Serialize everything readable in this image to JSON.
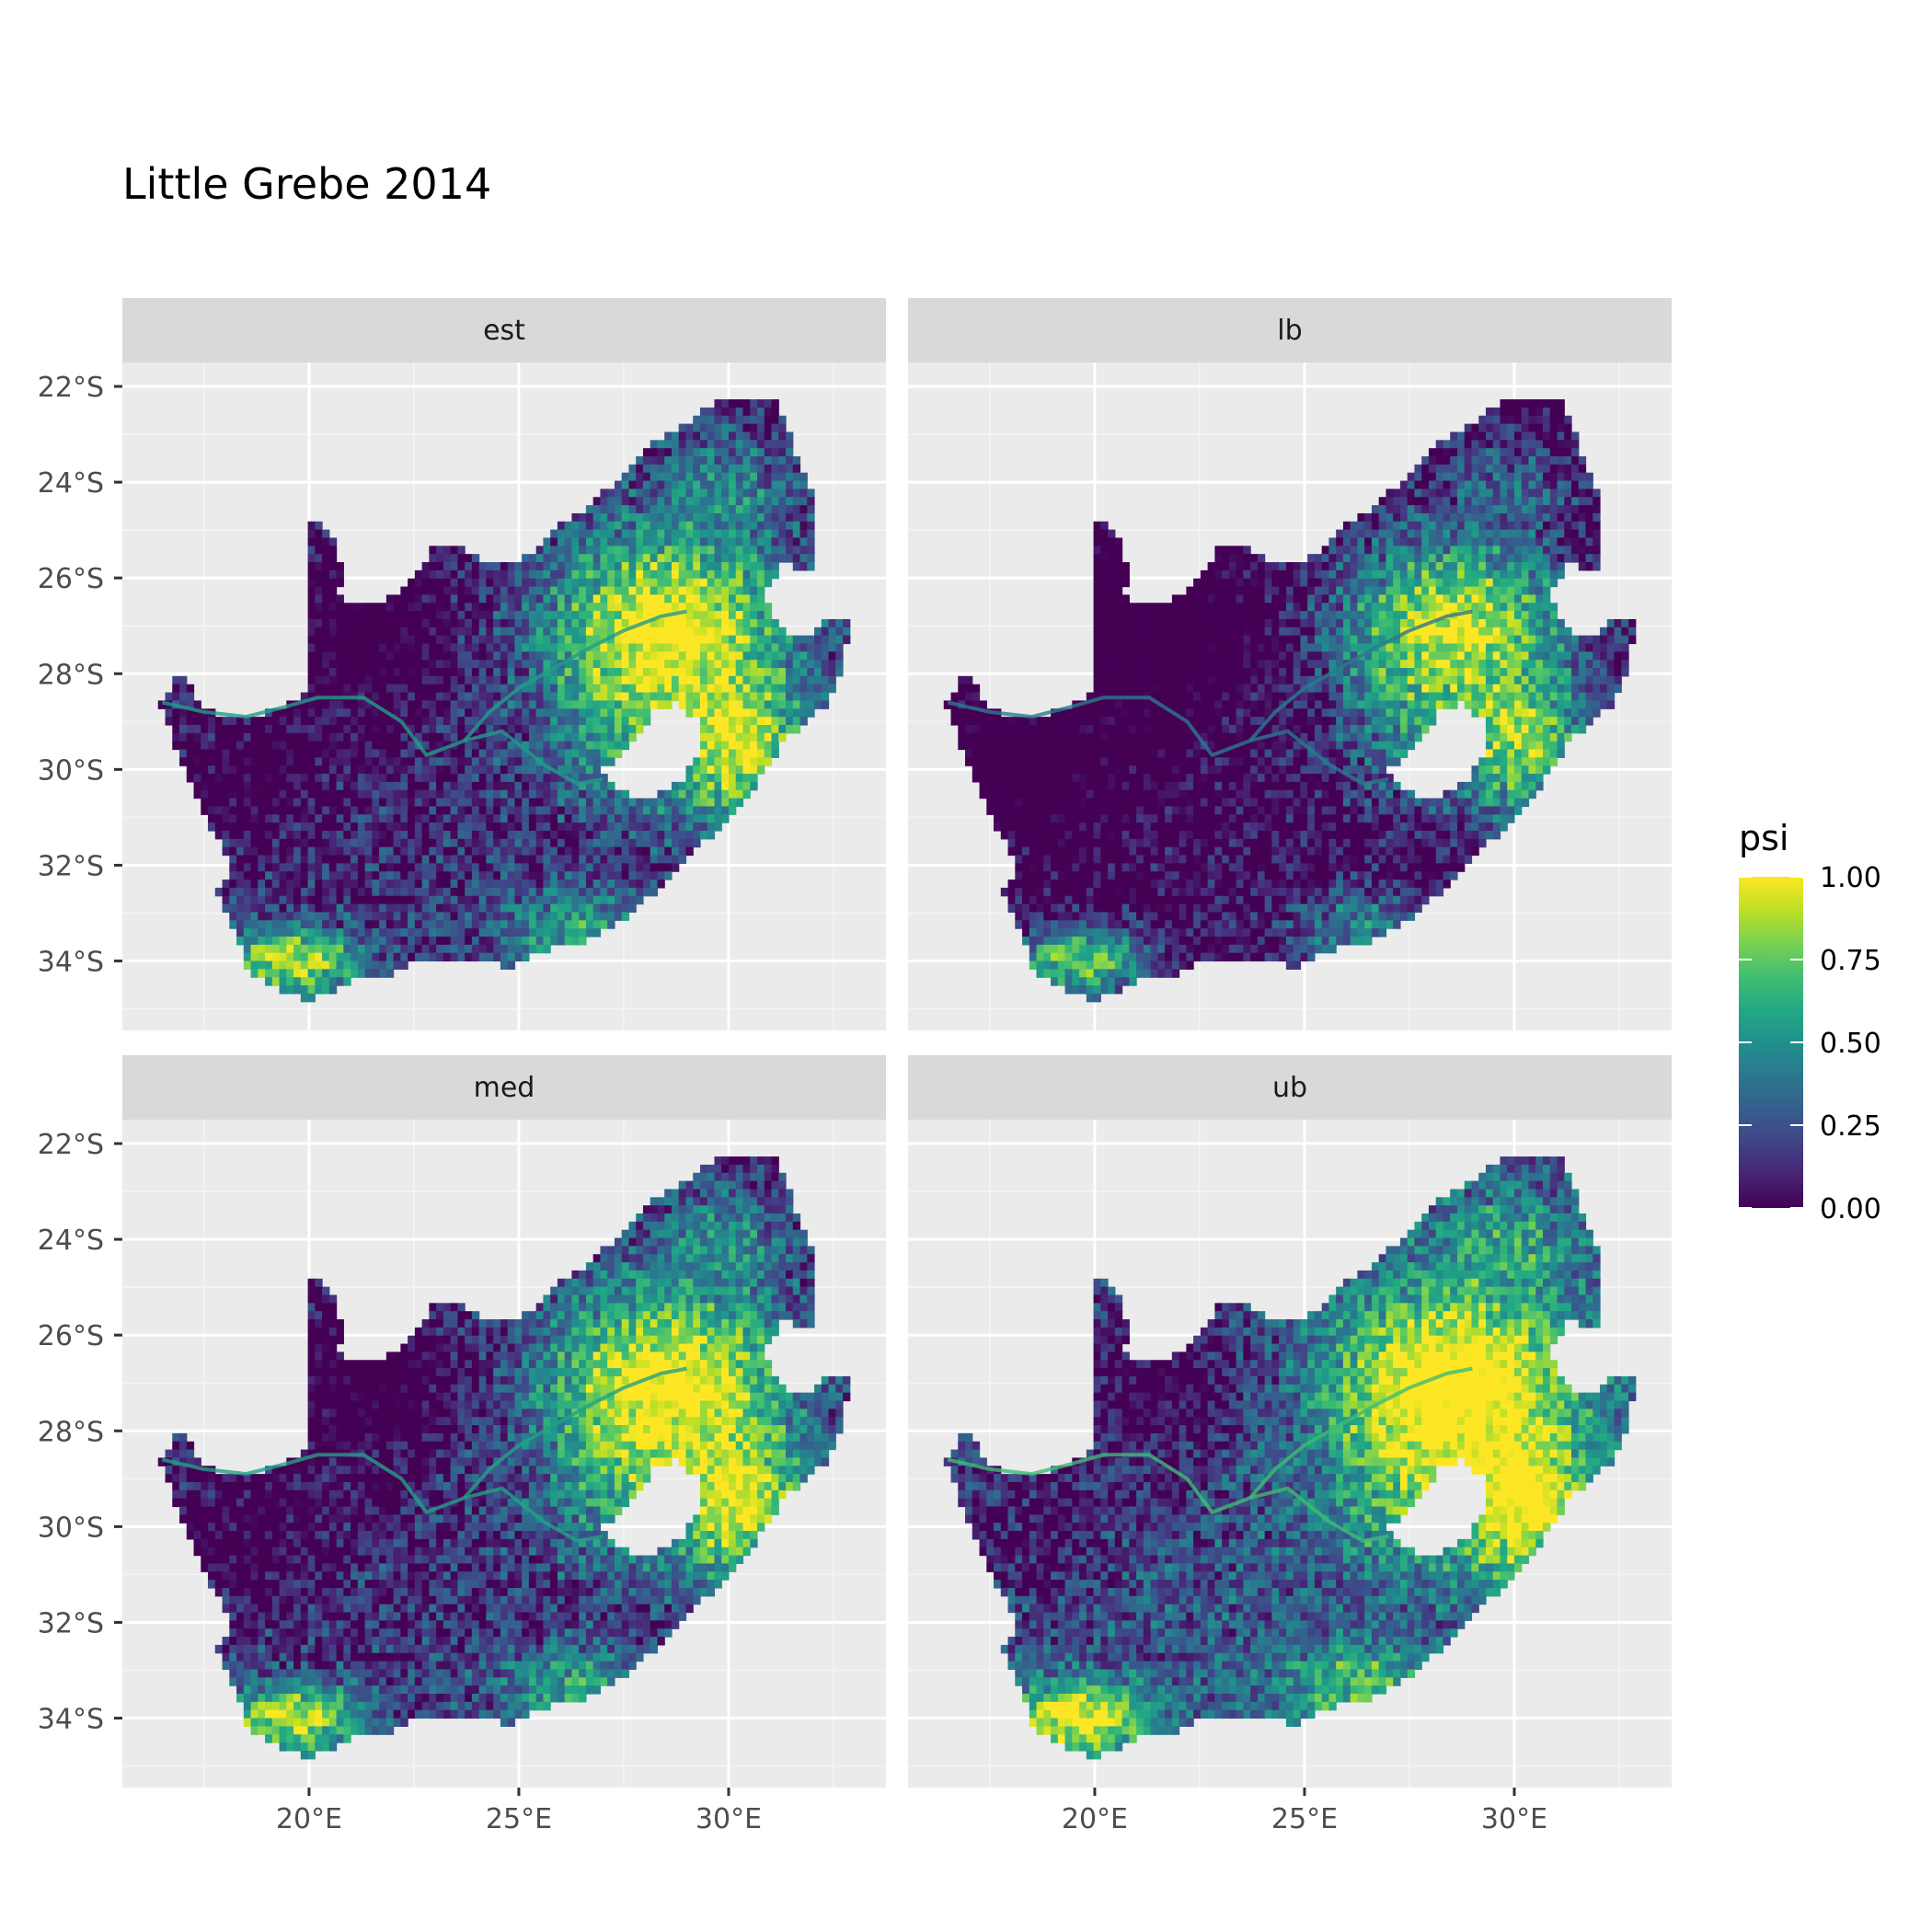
{
  "chart_data": {
    "type": "heatmap",
    "title": "Little Grebe 2014",
    "facets": [
      "est",
      "lb",
      "med",
      "ub"
    ],
    "x_ticks": [
      20,
      25,
      30
    ],
    "x_tick_labels": [
      "20°E",
      "25°E",
      "30°E"
    ],
    "y_ticks": [
      -22,
      -24,
      -26,
      -28,
      -30,
      -32,
      -34
    ],
    "y_tick_labels": [
      "22°S",
      "24°S",
      "26°S",
      "28°S",
      "30°S",
      "32°S",
      "34°S"
    ],
    "xlim": [
      15.55,
      33.75
    ],
    "ylim": [
      -35.45,
      -21.5
    ],
    "fill_variable": "psi",
    "legend": {
      "title": "psi",
      "breaks": [
        1.0,
        0.75,
        0.5,
        0.25,
        0.0
      ],
      "labels": [
        "1.00",
        "0.75",
        "0.50",
        "0.25",
        "0.00"
      ],
      "position": "right",
      "palette": "viridis"
    },
    "panel_background": "#ebebeb",
    "grid": true,
    "colors": {
      "strip_background": "#d9d9d9",
      "grid_line": "#ffffff",
      "viridis_low": "#440154",
      "viridis_mid": "#21908c",
      "viridis_high": "#fde725"
    }
  }
}
